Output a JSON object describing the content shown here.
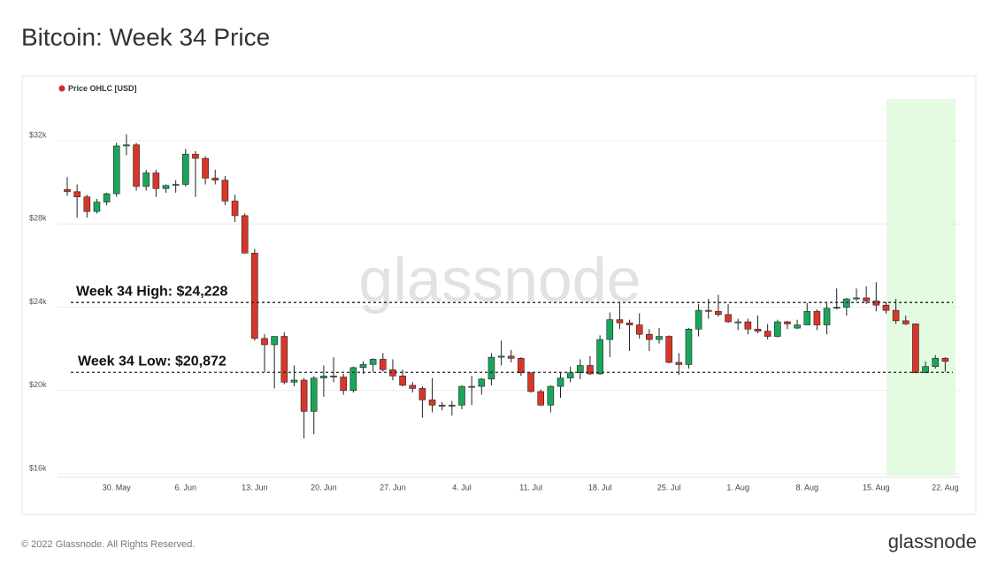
{
  "chart_data": {
    "type": "candlestick",
    "title": "Bitcoin: Week 34 Price",
    "legend": "Price OHLC [USD]",
    "legend_color": "#d62728",
    "watermark": "glassnode",
    "footer": "© 2022 Glassnode. All Rights Reserved.",
    "logo": "glassnode",
    "up_color": "#1aa65a",
    "down_color": "#d9362b",
    "grid": true,
    "ylim": [
      16000,
      34000
    ],
    "yticks": [
      {
        "value": 16000,
        "label": "$16k"
      },
      {
        "value": 20000,
        "label": "$20k"
      },
      {
        "value": 24000,
        "label": "$24k"
      },
      {
        "value": 28000,
        "label": "$28k"
      },
      {
        "value": 32000,
        "label": "$32k"
      }
    ],
    "annotations": [
      {
        "value": 24228,
        "label": "Week 34 High: $24,228"
      },
      {
        "value": 20872,
        "label": "Week 34 Low: $20,872"
      }
    ],
    "categories": [
      null,
      null,
      null,
      null,
      null,
      "30. May",
      null,
      null,
      null,
      null,
      null,
      null,
      "6. Jun",
      null,
      null,
      null,
      null,
      null,
      null,
      "13. Jun",
      null,
      null,
      null,
      null,
      null,
      null,
      "20. Jun",
      null,
      null,
      null,
      null,
      null,
      null,
      "27. Jun",
      null,
      null,
      null,
      null,
      null,
      null,
      "4. Jul",
      null,
      null,
      null,
      null,
      null,
      null,
      "11. Jul",
      null,
      null,
      null,
      null,
      null,
      null,
      "18. Jul",
      null,
      null,
      null,
      null,
      null,
      null,
      "25. Jul",
      null,
      null,
      null,
      null,
      null,
      null,
      "1. Aug",
      null,
      null,
      null,
      null,
      null,
      null,
      "8. Aug",
      null,
      null,
      null,
      null,
      null,
      null,
      "15. Aug",
      null,
      null,
      null,
      null,
      null,
      null,
      "22. Aug"
    ],
    "ohlc": [
      [
        29650,
        30250,
        29350,
        29550
      ],
      [
        29550,
        29900,
        28300,
        29300
      ],
      [
        29300,
        29400,
        28300,
        28600
      ],
      [
        28600,
        29200,
        28500,
        29050
      ],
      [
        29050,
        29500,
        28900,
        29450
      ],
      [
        29450,
        31900,
        29300,
        31750
      ],
      [
        31750,
        32300,
        31300,
        31800
      ],
      [
        31800,
        31900,
        29600,
        29800
      ],
      [
        29800,
        30600,
        29600,
        30450
      ],
      [
        30450,
        30600,
        29300,
        29700
      ],
      [
        29700,
        29900,
        29500,
        29850
      ],
      [
        29850,
        30100,
        29500,
        29900
      ],
      [
        29900,
        31600,
        29800,
        31350
      ],
      [
        31350,
        31500,
        29300,
        31150
      ],
      [
        31150,
        31250,
        29900,
        30200
      ],
      [
        30200,
        30600,
        29900,
        30100
      ],
      [
        30100,
        30300,
        28900,
        29100
      ],
      [
        29100,
        29400,
        28100,
        28400
      ],
      [
        28400,
        28500,
        26600,
        26600
      ],
      [
        26600,
        26800,
        22400,
        22500
      ],
      [
        22500,
        22700,
        20900,
        22200
      ],
      [
        22200,
        22600,
        20100,
        22600
      ],
      [
        22600,
        22800,
        20300,
        20400
      ],
      [
        20400,
        21200,
        20200,
        20500
      ],
      [
        20500,
        20600,
        17700,
        19000
      ],
      [
        19000,
        20700,
        17900,
        20600
      ],
      [
        20600,
        21200,
        19700,
        20700
      ],
      [
        20700,
        21600,
        20400,
        20650
      ],
      [
        20650,
        20800,
        19800,
        20000
      ],
      [
        20000,
        21150,
        19900,
        21100
      ],
      [
        21100,
        21400,
        20800,
        21250
      ],
      [
        21250,
        21550,
        20900,
        21500
      ],
      [
        21500,
        21800,
        20900,
        21000
      ],
      [
        21000,
        21500,
        20500,
        20700
      ],
      [
        20700,
        21000,
        20200,
        20250
      ],
      [
        20250,
        20400,
        19900,
        20100
      ],
      [
        20100,
        20200,
        18700,
        19550
      ],
      [
        19550,
        20600,
        18950,
        19300
      ],
      [
        19300,
        19450,
        19050,
        19250
      ],
      [
        19250,
        19500,
        18800,
        19300
      ],
      [
        19300,
        20250,
        19100,
        20200
      ],
      [
        20150,
        20700,
        19300,
        20200
      ],
      [
        20200,
        20600,
        19800,
        20550
      ],
      [
        20550,
        21800,
        20250,
        21600
      ],
      [
        21600,
        22400,
        21200,
        21650
      ],
      [
        21650,
        21950,
        21350,
        21550
      ],
      [
        21550,
        21600,
        20700,
        20850
      ],
      [
        20850,
        20850,
        19900,
        19950
      ],
      [
        19950,
        20050,
        19250,
        19300
      ],
      [
        19300,
        20250,
        18950,
        20200
      ],
      [
        20200,
        20850,
        19650,
        20600
      ],
      [
        20600,
        21150,
        20400,
        20850
      ],
      [
        20850,
        21500,
        20550,
        21200
      ],
      [
        21200,
        21650,
        20750,
        20800
      ],
      [
        20800,
        22650,
        20750,
        22450
      ],
      [
        22450,
        23750,
        21600,
        23400
      ],
      [
        23400,
        24250,
        22950,
        23250
      ],
      [
        23250,
        23400,
        21900,
        23150
      ],
      [
        23150,
        23700,
        22500,
        22700
      ],
      [
        22700,
        22950,
        21900,
        22450
      ],
      [
        22450,
        23000,
        22250,
        22600
      ],
      [
        22600,
        22650,
        21300,
        21350
      ],
      [
        21350,
        21800,
        20750,
        21250
      ],
      [
        21250,
        23000,
        21050,
        22950
      ],
      [
        22950,
        24150,
        22600,
        23850
      ],
      [
        23850,
        24400,
        23450,
        23800
      ],
      [
        23800,
        24600,
        23550,
        23650
      ],
      [
        23650,
        24150,
        23250,
        23300
      ],
      [
        23250,
        23450,
        22900,
        23300
      ],
      [
        23300,
        23450,
        22700,
        22950
      ],
      [
        22950,
        23600,
        22750,
        22850
      ],
      [
        22850,
        23200,
        22450,
        22600
      ],
      [
        22600,
        23400,
        22550,
        23300
      ],
      [
        23300,
        23350,
        22950,
        23200
      ],
      [
        23000,
        23400,
        22950,
        23150
      ],
      [
        23150,
        24200,
        23150,
        23800
      ],
      [
        23800,
        23900,
        22900,
        23150
      ],
      [
        23150,
        24200,
        22700,
        23950
      ],
      [
        23950,
        24900,
        23900,
        24000
      ],
      [
        24000,
        24450,
        23600,
        24400
      ],
      [
        24400,
        24900,
        24300,
        24450
      ],
      [
        24450,
        25000,
        24150,
        24300
      ],
      [
        24300,
        25200,
        23800,
        24100
      ],
      [
        24100,
        24250,
        23700,
        23850
      ],
      [
        23850,
        24400,
        23200,
        23350
      ],
      [
        23350,
        23600,
        23150,
        23200
      ],
      [
        23200,
        23200,
        20850,
        20850
      ],
      [
        20850,
        21400,
        20850,
        21150
      ],
      [
        21150,
        21700,
        21050,
        21550
      ],
      [
        21550,
        21600,
        20900,
        21400
      ]
    ]
  }
}
